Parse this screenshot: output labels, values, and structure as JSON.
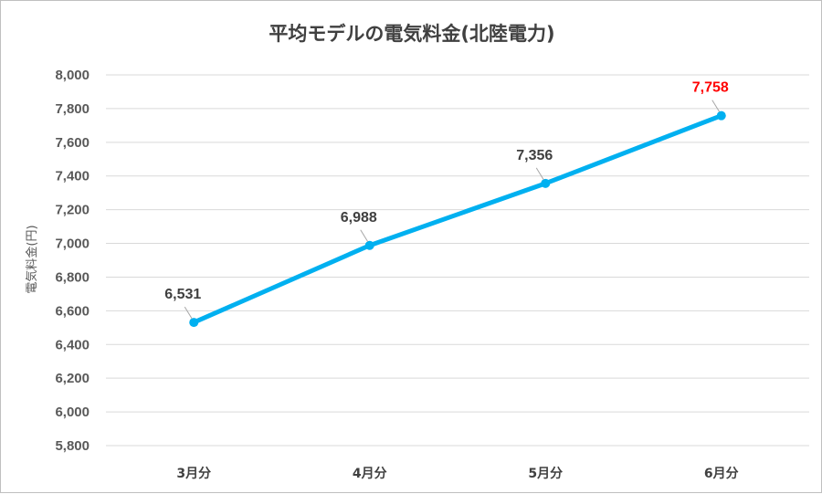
{
  "chart_data": {
    "type": "line",
    "title": "平均モデルの電気料金(北陸電力)",
    "xlabel": "",
    "ylabel": "電気料金(円)",
    "categories": [
      "3月分",
      "4月分",
      "5月分",
      "6月分"
    ],
    "series": [
      {
        "values": [
          6531,
          6988,
          7356,
          7758
        ]
      }
    ],
    "data_labels": [
      "6,531",
      "6,988",
      "7,356",
      "7,758"
    ],
    "ylim": [
      5800,
      8000
    ],
    "yticks": [
      5800,
      6000,
      6200,
      6400,
      6600,
      6800,
      7000,
      7200,
      7400,
      7600,
      7800,
      8000
    ],
    "ytick_labels": [
      "5,800",
      "6,000",
      "6,200",
      "6,400",
      "6,600",
      "6,800",
      "7,000",
      "7,200",
      "7,400",
      "7,600",
      "7,800",
      "8,000"
    ],
    "grid": true,
    "legend": "none",
    "colors": {
      "line": "#00b0f0",
      "marker": "#00b0f0",
      "label": "#404040",
      "highlight_label": "#ff0000",
      "grid": "#d9d9d9"
    },
    "highlight_index": 3
  }
}
